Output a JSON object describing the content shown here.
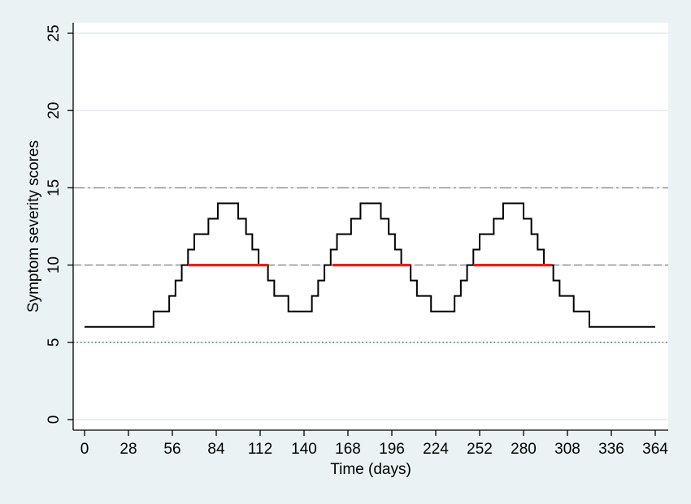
{
  "chart_data": {
    "type": "line",
    "xlabel": "Time (days)",
    "ylabel": "Symptom severity scores",
    "xlim": [
      0,
      364
    ],
    "xticks": [
      0,
      28,
      56,
      84,
      112,
      140,
      168,
      196,
      224,
      252,
      280,
      308,
      336,
      364
    ],
    "ylim": [
      0,
      25
    ],
    "yticks": [
      0,
      5,
      10,
      15,
      20,
      25
    ],
    "grid": true,
    "reference_lines": [
      {
        "value": 15,
        "style": "dashdot",
        "color": "#8c8c8c"
      },
      {
        "value": 10,
        "style": "dashed",
        "color": "#8c8c8c"
      },
      {
        "value": 5,
        "style": "dotted",
        "color": "#555555"
      }
    ],
    "series": [
      {
        "color": "#000000",
        "step": true,
        "x": [
          0,
          44,
          54,
          58,
          62,
          66,
          70,
          79,
          85,
          98,
          103,
          107,
          111,
          117,
          121,
          130,
          145,
          149,
          153,
          157,
          161,
          170,
          176,
          189,
          194,
          198,
          202,
          208,
          212,
          221,
          236,
          240,
          244,
          248,
          252,
          261,
          267,
          280,
          285,
          289,
          293,
          299,
          303,
          312,
          322,
          364
        ],
        "values": [
          6,
          7,
          8,
          9,
          10,
          11,
          12,
          13,
          14,
          13,
          12,
          11,
          10,
          9,
          8,
          7,
          8,
          9,
          10,
          11,
          12,
          13,
          14,
          13,
          12,
          11,
          10,
          9,
          8,
          7,
          8,
          9,
          10,
          11,
          12,
          13,
          14,
          13,
          12,
          11,
          10,
          9,
          8,
          7,
          6,
          6
        ]
      },
      {
        "color": "#e8201c",
        "x": [
          66,
          117
        ],
        "values": [
          10,
          10
        ]
      },
      {
        "color": "#e8201c",
        "x": [
          158,
          208
        ],
        "values": [
          10,
          10
        ]
      },
      {
        "color": "#e8201c",
        "x": [
          248,
          298
        ],
        "values": [
          10,
          10
        ]
      }
    ]
  }
}
